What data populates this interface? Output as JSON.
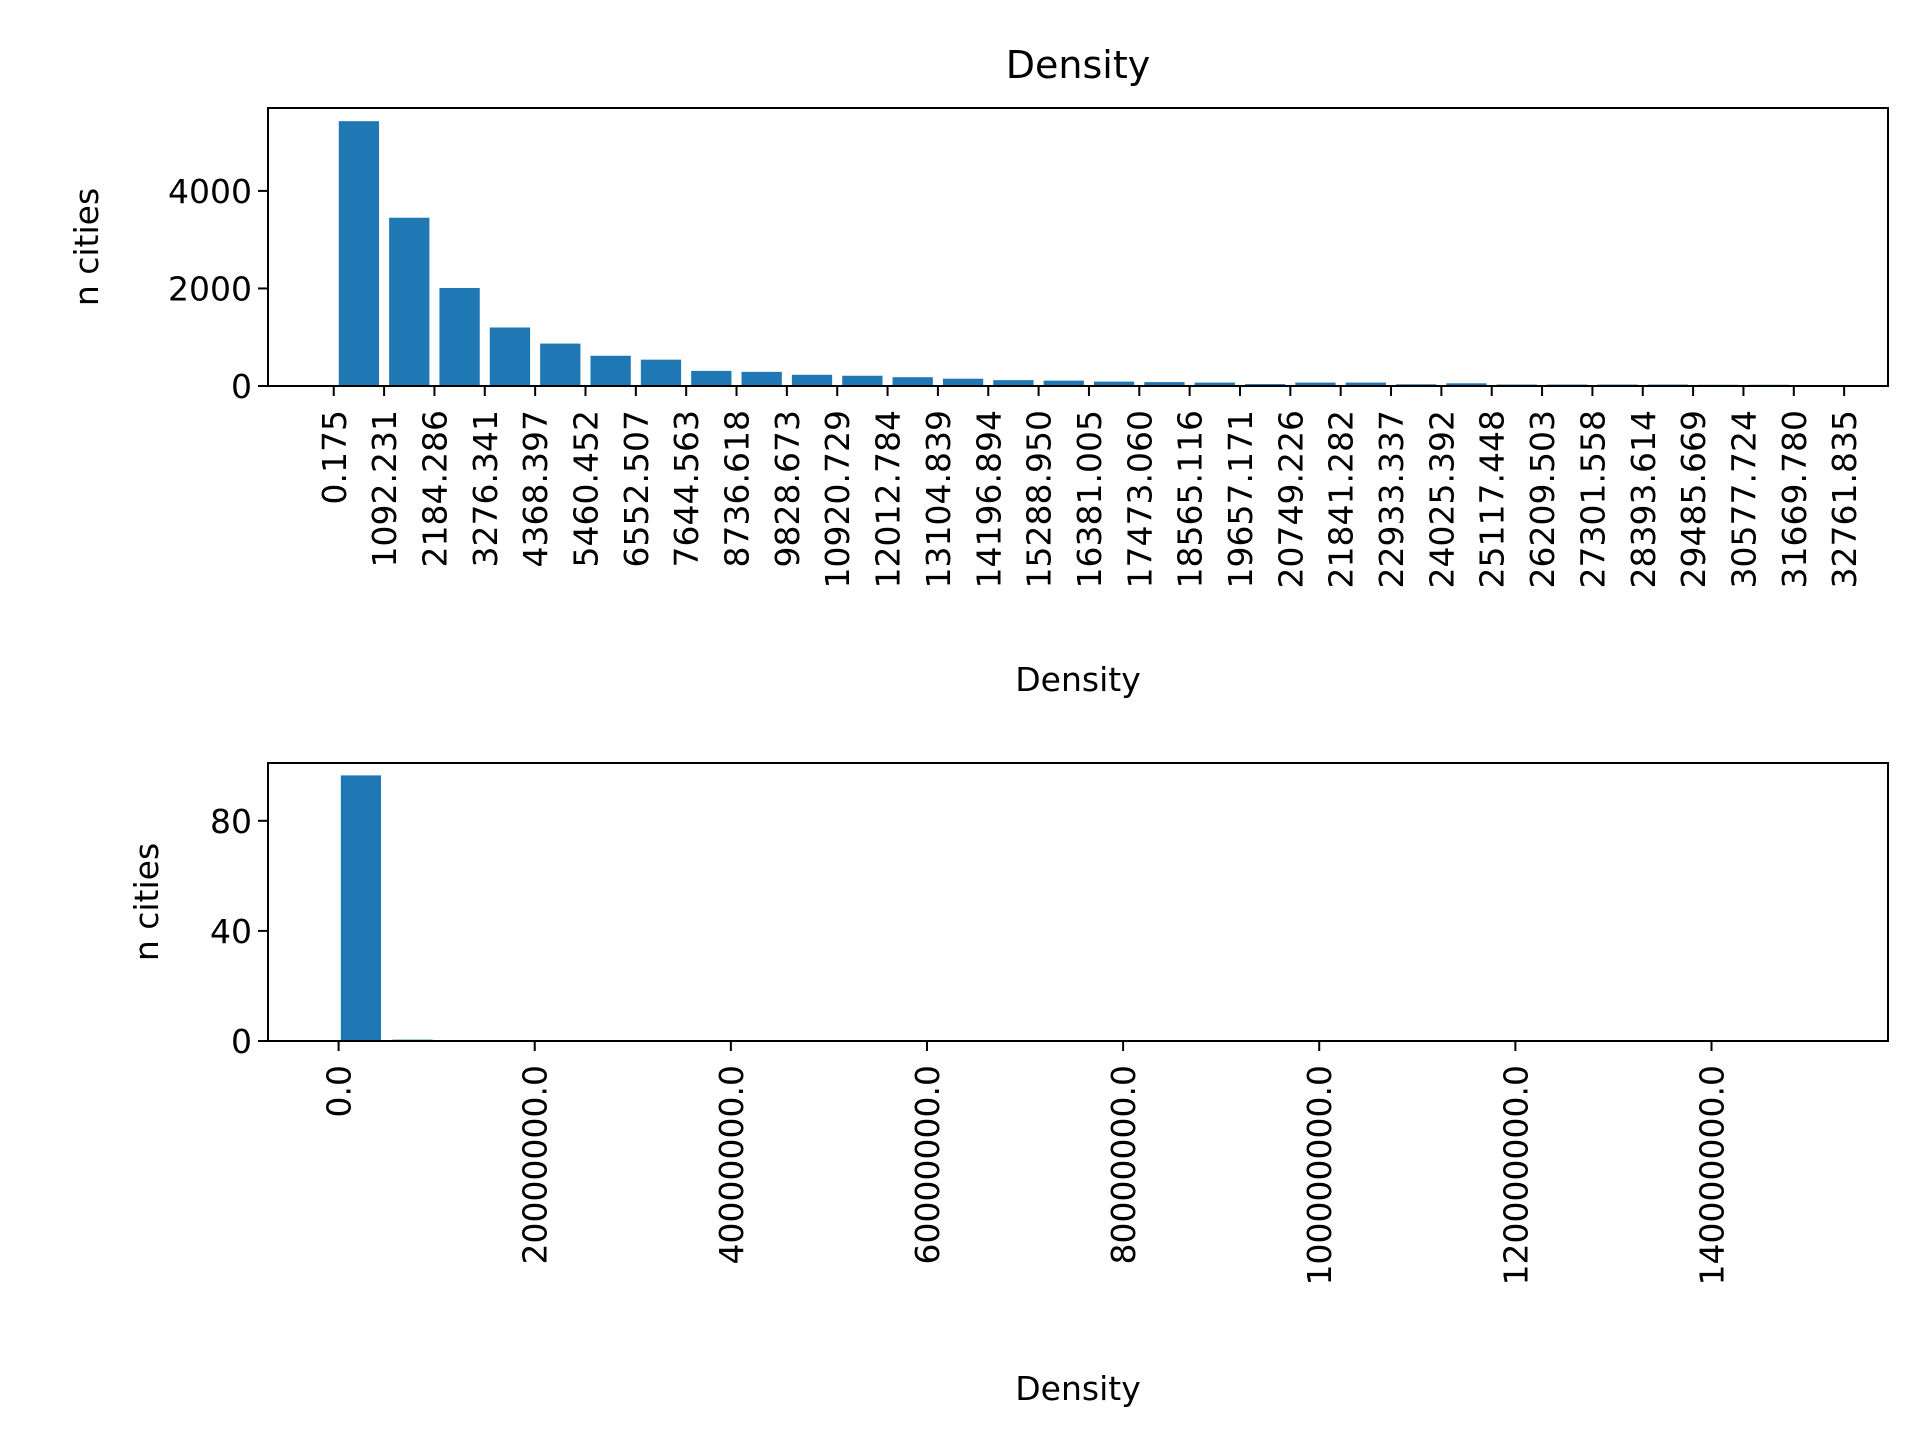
{
  "colors": {
    "bar": "#1f77b4",
    "axis": "#000000",
    "background": "#ffffff"
  },
  "chart_data": [
    {
      "type": "bar",
      "title": "Density",
      "xlabel": "Density",
      "ylabel": "n cities",
      "grid": false,
      "legend": "none",
      "ylim": [
        0,
        5700
      ],
      "yticks": [
        0,
        2000,
        4000
      ],
      "xlim": [
        -1426.0,
        33713.0
      ],
      "bar_width": 874.0,
      "xtick_labels": [
        "0.175",
        "1092.231",
        "2184.286",
        "3276.341",
        "4368.397",
        "5460.452",
        "6552.507",
        "7644.563",
        "8736.618",
        "9828.673",
        "10920.729",
        "12012.784",
        "13104.839",
        "14196.894",
        "15288.950",
        "16381.005",
        "17473.060",
        "18565.116",
        "19657.171",
        "20749.226",
        "21841.282",
        "22933.337",
        "24025.392",
        "25117.448",
        "26209.503",
        "27301.558",
        "28393.614",
        "29485.669",
        "30577.724",
        "31669.780",
        "32761.835"
      ],
      "xticks": [
        0.175,
        1092.231,
        2184.286,
        3276.341,
        4368.397,
        5460.452,
        6552.507,
        7644.563,
        8736.618,
        9828.673,
        10920.729,
        12012.784,
        13104.839,
        14196.894,
        15288.95,
        16381.005,
        17473.06,
        18565.116,
        19657.171,
        20749.226,
        21841.282,
        22933.337,
        24025.392,
        25117.448,
        26209.503,
        27301.558,
        28393.614,
        29485.669,
        30577.724,
        31669.78,
        32761.835
      ],
      "series": [
        {
          "x": [
            546,
            1638,
            2730,
            3822,
            4914,
            6006,
            7098,
            8190,
            9282,
            10374,
            11466,
            12558,
            13650,
            14742,
            15834,
            16926,
            18018,
            19110,
            20202,
            21294,
            22386,
            23478,
            24570,
            25662,
            26754,
            27846,
            28938,
            30030,
            31122,
            32214
          ],
          "values": [
            5430,
            3450,
            2010,
            1200,
            870,
            620,
            540,
            310,
            290,
            230,
            210,
            180,
            150,
            120,
            110,
            90,
            80,
            70,
            40,
            70,
            70,
            35,
            55,
            30,
            30,
            30,
            30,
            25,
            25,
            10
          ]
        }
      ]
    },
    {
      "type": "bar",
      "xlabel": "Density",
      "ylabel": "n cities",
      "grid": false,
      "legend": "none",
      "ylim": [
        0,
        101
      ],
      "yticks": [
        0,
        40,
        80
      ],
      "xlim": [
        -7200000,
        158000000
      ],
      "bar_width": 4100000,
      "xtick_labels": [
        "0.0",
        "20000000.0",
        "40000000.0",
        "60000000.0",
        "80000000.0",
        "100000000.0",
        "120000000.0",
        "140000000.0"
      ],
      "xticks": [
        0,
        20000000,
        40000000,
        60000000,
        80000000,
        100000000,
        120000000,
        140000000
      ],
      "series": [
        {
          "x": [
            2275000,
            7545000
          ],
          "values": [
            96.5,
            0.5
          ]
        }
      ]
    }
  ]
}
